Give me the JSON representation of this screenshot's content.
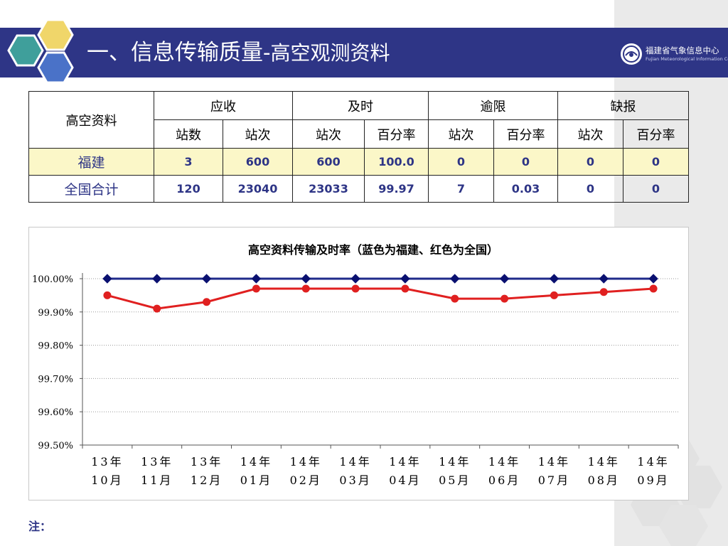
{
  "header": {
    "title_main": "一、信息传输质量-",
    "title_sub": "高空观测资料"
  },
  "logo": {
    "name_cn": "福建省气象信息中心",
    "name_en": "Fujian Meteorological Information Centre"
  },
  "table": {
    "corner": "高空资料",
    "groups": [
      "应收",
      "及时",
      "逾限",
      "缺报"
    ],
    "subheaders": [
      "站数",
      "站次",
      "站次",
      "百分率",
      "站次",
      "百分率",
      "站次",
      "百分率"
    ],
    "rows": [
      {
        "label": "福建",
        "values": [
          "3",
          "600",
          "600",
          "100.0",
          "0",
          "0",
          "0",
          "0"
        ]
      },
      {
        "label": "全国合计",
        "values": [
          "120",
          "23040",
          "23033",
          "99.97",
          "7",
          "0.03",
          "0",
          "0"
        ]
      }
    ]
  },
  "chart_data": {
    "type": "line",
    "title": "高空资料传输及时率（蓝色为福建、红色为全国）",
    "categories": [
      "13年10月",
      "13年11月",
      "13年12月",
      "14年01月",
      "14年02月",
      "14年03月",
      "14年04月",
      "14年05月",
      "14年06月",
      "14年07月",
      "14年08月",
      "14年09月"
    ],
    "series": [
      {
        "values": [
          100.0,
          100.0,
          100.0,
          100.0,
          100.0,
          100.0,
          100.0,
          100.0,
          100.0,
          100.0,
          100.0,
          100.0
        ],
        "color": "#1f2a8a"
      },
      {
        "values": [
          99.95,
          99.91,
          99.93,
          99.97,
          99.97,
          99.97,
          99.97,
          99.94,
          99.94,
          99.95,
          99.96,
          99.97
        ],
        "color": "#e02020"
      }
    ],
    "yticks": [
      "99.50%",
      "99.60%",
      "99.70%",
      "99.80%",
      "99.90%",
      "100.00%"
    ],
    "ylim": [
      99.5,
      100.0
    ],
    "grid": "dotted horizontal"
  },
  "footer": {
    "note": "注："
  },
  "colors": {
    "band": "#2e3586",
    "fujian_row": "#fbf7c8",
    "hex_teal": "#3f9f9b",
    "hex_yellow": "#f0d66a",
    "hex_blue": "#4a72c8"
  }
}
